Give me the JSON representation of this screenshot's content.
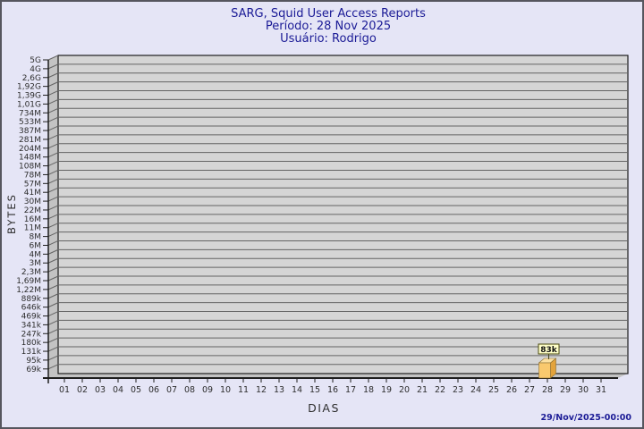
{
  "header": {
    "title": "SARG, Squid User Access Reports",
    "period": "Período: 28 Nov 2025",
    "user": "Usuário: Rodrigo"
  },
  "footer": {
    "generated": "29/Nov/2025-00:00"
  },
  "chart_data": {
    "type": "bar",
    "title": "SARG, Squid User Access Reports",
    "subtitle": "Período: 28 Nov 2025",
    "user_line": "Usuário: Rodrigo",
    "xlabel": "DIAS",
    "ylabel": "BYTES",
    "x_categories": [
      "01",
      "02",
      "03",
      "04",
      "05",
      "06",
      "07",
      "08",
      "09",
      "10",
      "11",
      "12",
      "13",
      "14",
      "15",
      "16",
      "17",
      "18",
      "19",
      "20",
      "21",
      "22",
      "23",
      "24",
      "25",
      "26",
      "27",
      "28",
      "29",
      "30",
      "31"
    ],
    "y_tick_labels": [
      "5G",
      "4G",
      "2,6G",
      "1,92G",
      "1,39G",
      "1,01G",
      "734M",
      "533M",
      "387M",
      "281M",
      "204M",
      "148M",
      "108M",
      "78M",
      "57M",
      "41M",
      "30M",
      "22M",
      "16M",
      "11M",
      "8M",
      "6M",
      "4M",
      "3M",
      "2,3M",
      "1,69M",
      "1,22M",
      "889k",
      "646k",
      "469k",
      "341k",
      "247k",
      "180k",
      "131k",
      "95k",
      "69k"
    ],
    "bars": [
      {
        "x": "28",
        "label": "83k"
      }
    ],
    "legend": "none",
    "grid": "horizontal log-style gridlines, 3D left wall and floor"
  },
  "colors": {
    "background": "#E5E5F6",
    "outer_border": "#56565E",
    "title_text": "#1B1B96",
    "footer_text": "#1B1B96",
    "plot_fill": "#D5D5D5",
    "wall_fill": "#C3C3C3",
    "gridline": "#646464",
    "axis_line": "#1E1E1E",
    "tick_text": "#2E2E2E",
    "bar_front": "#F9C96E",
    "bar_top": "#FCE0A0",
    "bar_side": "#E3A33B",
    "bar_outline": "#8A6D2F",
    "tag_fill": "#FFFFC8",
    "tag_border": "#4A4A10",
    "tag_text": "#111111"
  }
}
